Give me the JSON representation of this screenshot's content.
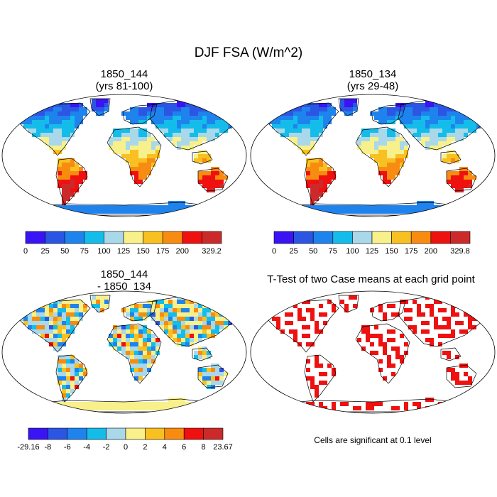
{
  "figure": {
    "title": "DJF FSA (W/m^2)"
  },
  "panels": [
    {
      "title_line1": "1850_144",
      "title_line2": "(yrs 81-100)",
      "palette": [
        "#3a14f5",
        "#2b55e3",
        "#1f83ee",
        "#14bde9",
        "#a8d8ea",
        "#f8f08a",
        "#f8c020",
        "#f88c10",
        "#ef1010",
        "#cc2a2a"
      ],
      "colorbar_labels": [
        "0",
        "25",
        "50",
        "75",
        "100",
        "125",
        "150",
        "175",
        "200",
        "329.2"
      ]
    },
    {
      "title_line1": "1850_134",
      "title_line2": "(yrs 29-48)",
      "palette": [
        "#3a14f5",
        "#2b55e3",
        "#1f83ee",
        "#14bde9",
        "#a8d8ea",
        "#f8f08a",
        "#f8c020",
        "#f88c10",
        "#ef1010",
        "#cc2a2a"
      ],
      "colorbar_labels": [
        "0",
        "25",
        "50",
        "75",
        "100",
        "125",
        "150",
        "175",
        "200",
        "329.8"
      ]
    },
    {
      "title_line1": "1850_144",
      "title_line2": "- 1850_134",
      "palette": [
        "#3a14f5",
        "#2b55e3",
        "#1f83ee",
        "#14bde9",
        "#a8d8ea",
        "#f8f08a",
        "#f8c020",
        "#f88c10",
        "#ef1010",
        "#cc2a2a"
      ],
      "colorbar_labels": [
        "-29.16",
        "-8",
        "-6",
        "-4",
        "-2",
        "0",
        "2",
        "4",
        "6",
        "8",
        "23.67"
      ]
    },
    {
      "title": "T-Test of two Case means at each grid point",
      "note": "Cells are significant at 0.1 level",
      "significant_color": "#ef1010"
    }
  ]
}
